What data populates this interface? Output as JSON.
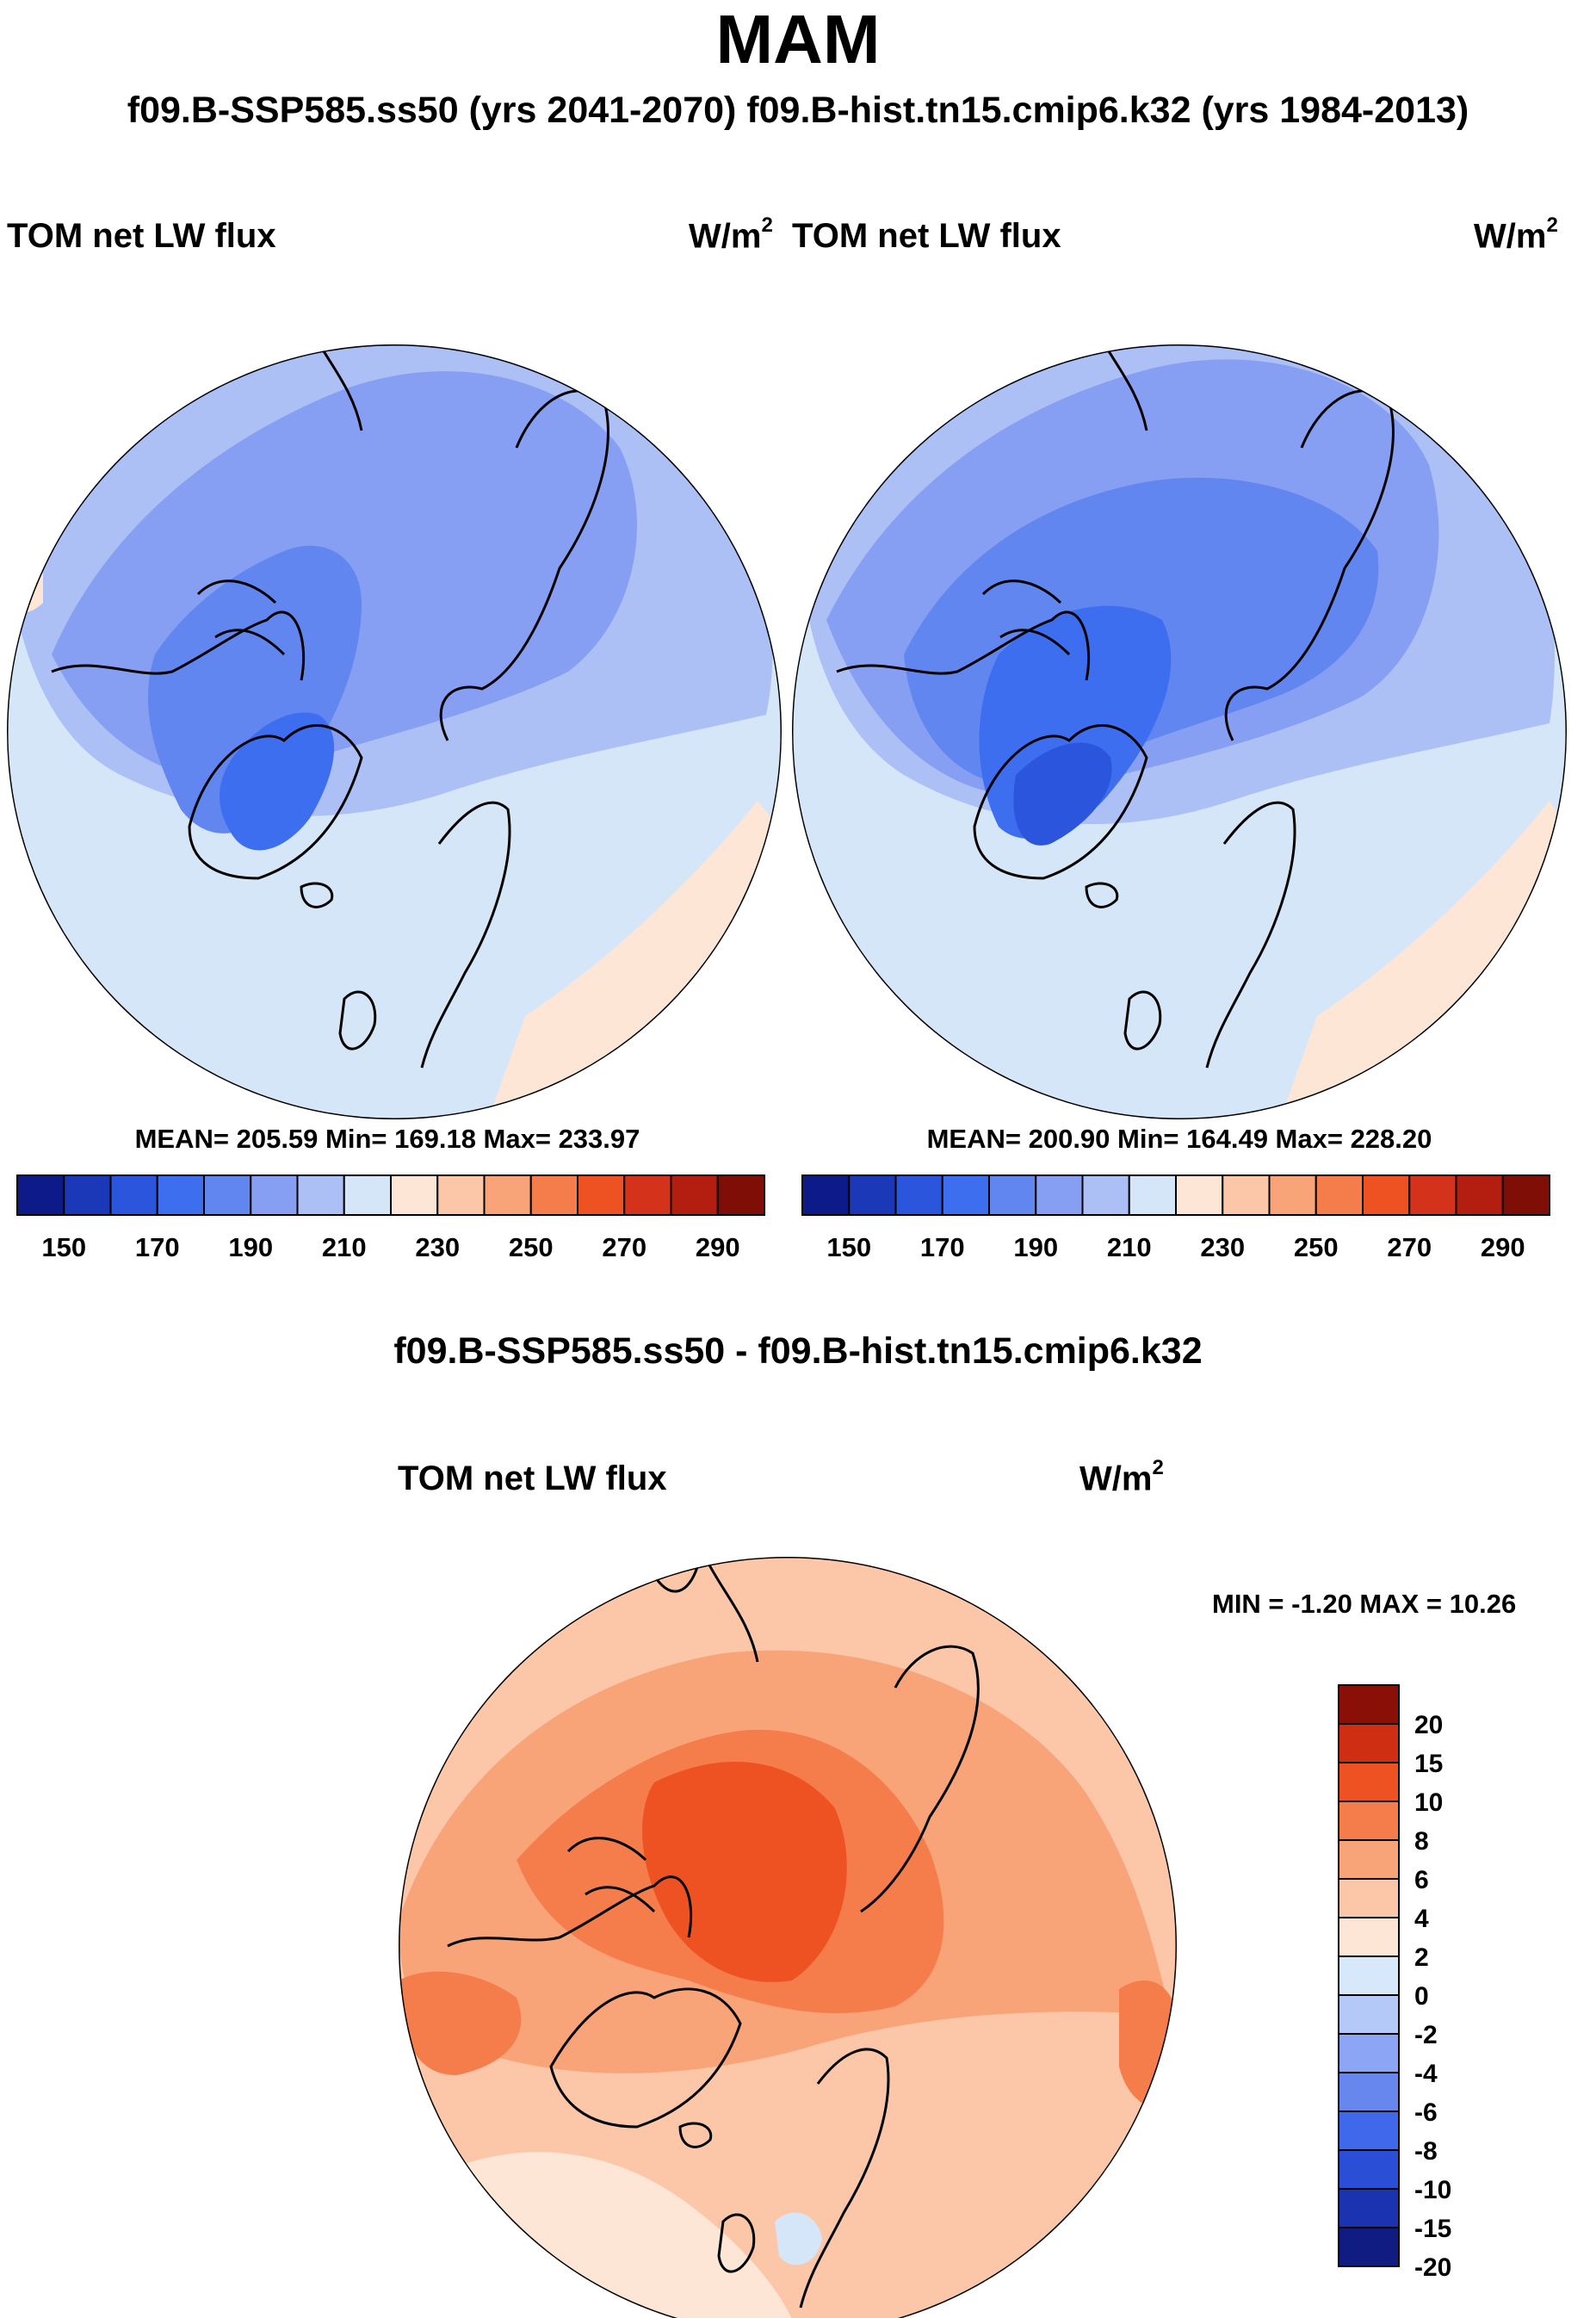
{
  "title": "MAM",
  "subtitle": "f09.B-SSP585.ss50 (yrs 2041-2070)  f09.B-hist.tn15.cmip6.k32 (yrs 1984-2013)",
  "diff_title": "f09.B-SSP585.ss50 - f09.B-hist.tn15.cmip6.k32",
  "colors": {
    "abs_palette": [
      "#0c1a8a",
      "#1a38b8",
      "#2a55dc",
      "#3e6ef0",
      "#6186f0",
      "#879ff2",
      "#adc0f6",
      "#d6e6f9",
      "#fde6d6",
      "#fbc7a8",
      "#f8a478",
      "#f57d4c",
      "#ef5222",
      "#d4321a",
      "#b31e10",
      "#7f0e06"
    ],
    "diff_palette": [
      "#101c82",
      "#1b33b0",
      "#2a4fd6",
      "#4068ea",
      "#6787ef",
      "#8ca5f4",
      "#b4c9f8",
      "#d8e8fb",
      "#fde6d6",
      "#fbc7a8",
      "#f8a478",
      "#f57d4c",
      "#ef5222",
      "#cf2e12",
      "#8a0f06"
    ]
  },
  "chart_data": [
    {
      "type": "heatmap",
      "projection": "north-polar-stereographic",
      "case": "f09.B-SSP585.ss50 (yrs 2041-2070)",
      "left_string": "TOM net LW flux",
      "units": "W/m",
      "units_exp": "2",
      "stats_text": "MEAN= 205.59  Min= 169.18  Max= 233.97",
      "mean": 205.59,
      "min": 169.18,
      "max": 233.97,
      "colorbar": {
        "orientation": "horizontal",
        "levels": [
          145,
          150,
          160,
          170,
          180,
          190,
          200,
          210,
          220,
          230,
          240,
          250,
          260,
          270,
          280,
          290
        ],
        "tick_labels": [
          "150",
          "170",
          "190",
          "210",
          "230",
          "250",
          "270",
          "290"
        ]
      }
    },
    {
      "type": "heatmap",
      "projection": "north-polar-stereographic",
      "case": "f09.B-hist.tn15.cmip6.k32 (yrs 1984-2013)",
      "left_string": "TOM net LW flux",
      "units": "W/m",
      "units_exp": "2",
      "stats_text": "MEAN= 200.90  Min= 164.49  Max= 228.20",
      "mean": 200.9,
      "min": 164.49,
      "max": 228.2,
      "colorbar": {
        "orientation": "horizontal",
        "levels": [
          145,
          150,
          160,
          170,
          180,
          190,
          200,
          210,
          220,
          230,
          240,
          250,
          260,
          270,
          280,
          290
        ],
        "tick_labels": [
          "150",
          "170",
          "190",
          "210",
          "230",
          "250",
          "270",
          "290"
        ]
      }
    },
    {
      "type": "heatmap",
      "projection": "north-polar-stereographic",
      "case": "f09.B-SSP585.ss50 - f09.B-hist.tn15.cmip6.k32",
      "left_string": "TOM net LW flux",
      "units": "W/m",
      "units_exp": "2",
      "stats_text": "MIN =  -1.20 MAX =  10.26",
      "min": -1.2,
      "max": 10.26,
      "colorbar": {
        "orientation": "vertical",
        "tick_labels": [
          "20",
          "15",
          "10",
          "8",
          "6",
          "4",
          "2",
          "0",
          "-2",
          "-4",
          "-6",
          "-8",
          "-10",
          "-15",
          "-20"
        ]
      }
    }
  ]
}
